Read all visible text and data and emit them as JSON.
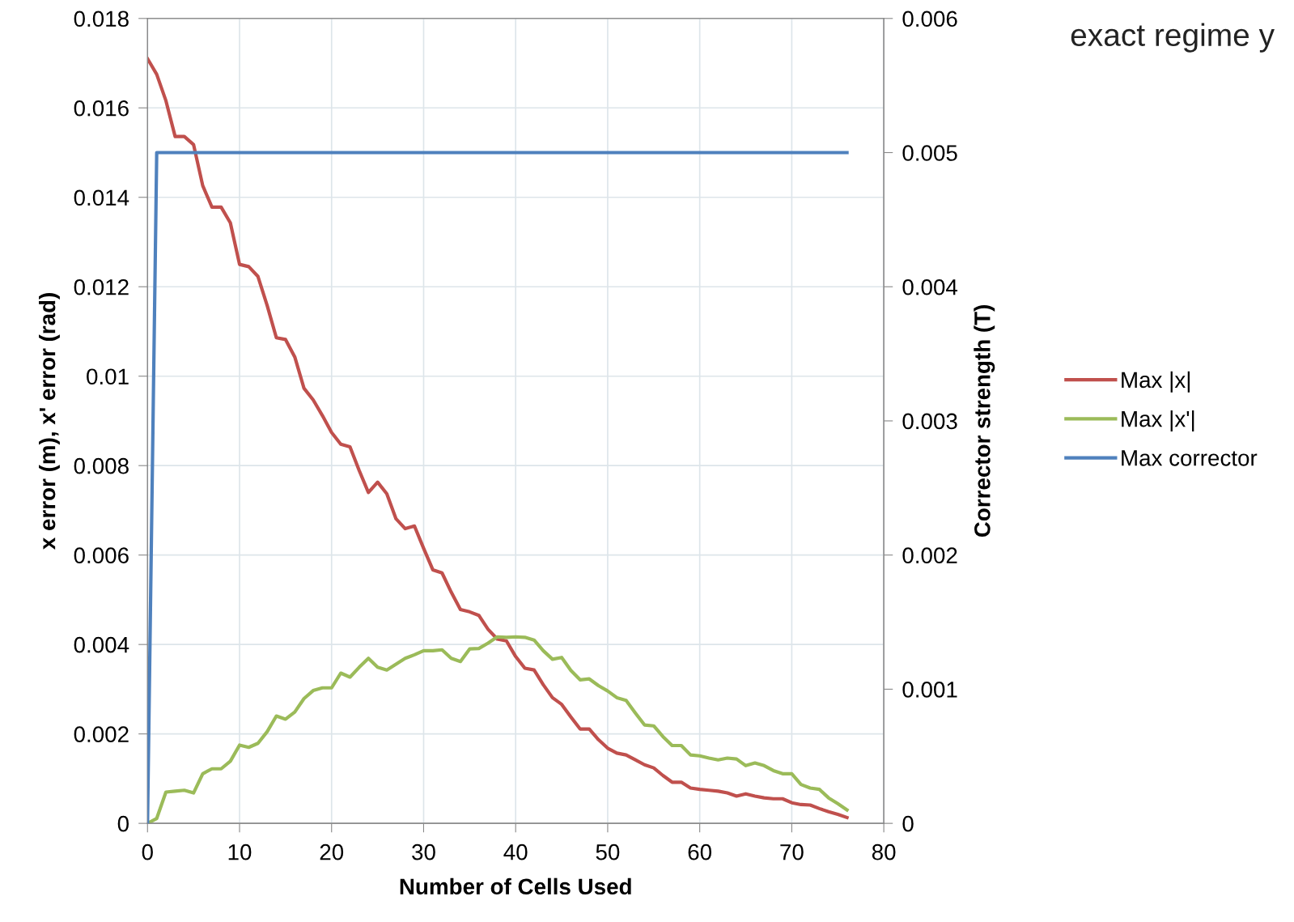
{
  "chart_data": {
    "type": "line",
    "xlabel": "Number of Cells Used",
    "ylabel": "x error (m), x' error (rad)",
    "y2label": "Corrector strength (T)",
    "xlim": [
      0,
      80
    ],
    "xticks": [
      0,
      10,
      20,
      30,
      40,
      50,
      60,
      70,
      80
    ],
    "ylim": [
      0,
      0.018
    ],
    "yticks": [
      0,
      0.002,
      0.004,
      0.006,
      0.008,
      0.01,
      0.012,
      0.014,
      0.016,
      0.018
    ],
    "y2lim": [
      0,
      0.006
    ],
    "y2ticks": [
      0,
      0.001,
      0.002,
      0.003,
      0.004,
      0.005,
      0.006
    ],
    "grid": true,
    "legend": "right",
    "marker": "none",
    "line_style": "solid",
    "annotations": [
      "exact regime y"
    ],
    "x": [
      0,
      1,
      2,
      3,
      4,
      5,
      6,
      7,
      8,
      9,
      10,
      11,
      12,
      13,
      14,
      15,
      16,
      17,
      18,
      19,
      20,
      21,
      22,
      23,
      24,
      25,
      26,
      27,
      28,
      29,
      30,
      31,
      32,
      33,
      34,
      35,
      36,
      37,
      38,
      39,
      40,
      41,
      42,
      43,
      44,
      45,
      46,
      47,
      48,
      49,
      50,
      51,
      52,
      53,
      54,
      55,
      56,
      57,
      58,
      59,
      60,
      61,
      62,
      63,
      64,
      65,
      66,
      67,
      68,
      69,
      70,
      71,
      72,
      73,
      74,
      75,
      76
    ],
    "series": [
      {
        "name": "Max |x|",
        "color": "#c0504d",
        "values": [
          0.0171,
          0.01675,
          0.01616,
          0.01536,
          0.01536,
          0.01518,
          0.01426,
          0.01378,
          0.01378,
          0.01343,
          0.0125,
          0.01245,
          0.01223,
          0.01158,
          0.01086,
          0.01082,
          0.01043,
          0.00973,
          0.00947,
          0.00912,
          0.00874,
          0.00848,
          0.00842,
          0.00789,
          0.0074,
          0.00763,
          0.00737,
          0.00681,
          0.00659,
          0.00665,
          0.00615,
          0.00567,
          0.0056,
          0.00517,
          0.00478,
          0.00473,
          0.00465,
          0.00434,
          0.00412,
          0.00408,
          0.00373,
          0.00347,
          0.00343,
          0.0031,
          0.00281,
          0.00266,
          0.00238,
          0.00211,
          0.00211,
          0.00187,
          0.00168,
          0.00157,
          0.00153,
          0.00142,
          0.00131,
          0.00124,
          0.00107,
          0.00092,
          0.00092,
          0.00079,
          0.00076,
          0.00074,
          0.00072,
          0.00068,
          0.00061,
          0.00066,
          0.00061,
          0.00057,
          0.00055,
          0.00055,
          0.00046,
          0.00042,
          0.00041,
          0.00033,
          0.00026,
          0.0002,
          0.00013
        ]
      },
      {
        "name": "Max |x'|",
        "color": "#9bbb59",
        "values": [
          0,
          0.00011,
          0.0007,
          0.00072,
          0.00074,
          0.00068,
          0.00111,
          0.00122,
          0.00122,
          0.00139,
          0.00175,
          0.0017,
          0.00179,
          0.00205,
          0.0024,
          0.00233,
          0.00249,
          0.00279,
          0.00297,
          0.00303,
          0.00303,
          0.00336,
          0.00327,
          0.00349,
          0.00369,
          0.00349,
          0.00343,
          0.00356,
          0.00369,
          0.00377,
          0.00386,
          0.00386,
          0.00388,
          0.00369,
          0.00362,
          0.0039,
          0.00391,
          0.00403,
          0.00417,
          0.00416,
          0.00417,
          0.00416,
          0.0041,
          0.00386,
          0.00367,
          0.00371,
          0.00342,
          0.00321,
          0.00323,
          0.00308,
          0.00296,
          0.00281,
          0.00275,
          0.00247,
          0.0022,
          0.00218,
          0.00194,
          0.00174,
          0.00174,
          0.00153,
          0.00151,
          0.00146,
          0.00142,
          0.00146,
          0.00144,
          0.00129,
          0.00135,
          0.00129,
          0.00118,
          0.00111,
          0.00111,
          0.00087,
          0.00079,
          0.00076,
          0.00057,
          0.00044,
          0.0003
        ]
      },
      {
        "name": "Max corrector",
        "color": "#4f81bd",
        "axis": "y2",
        "x": [
          0,
          1,
          76
        ],
        "values": [
          0,
          0.005,
          0.005
        ]
      }
    ]
  }
}
